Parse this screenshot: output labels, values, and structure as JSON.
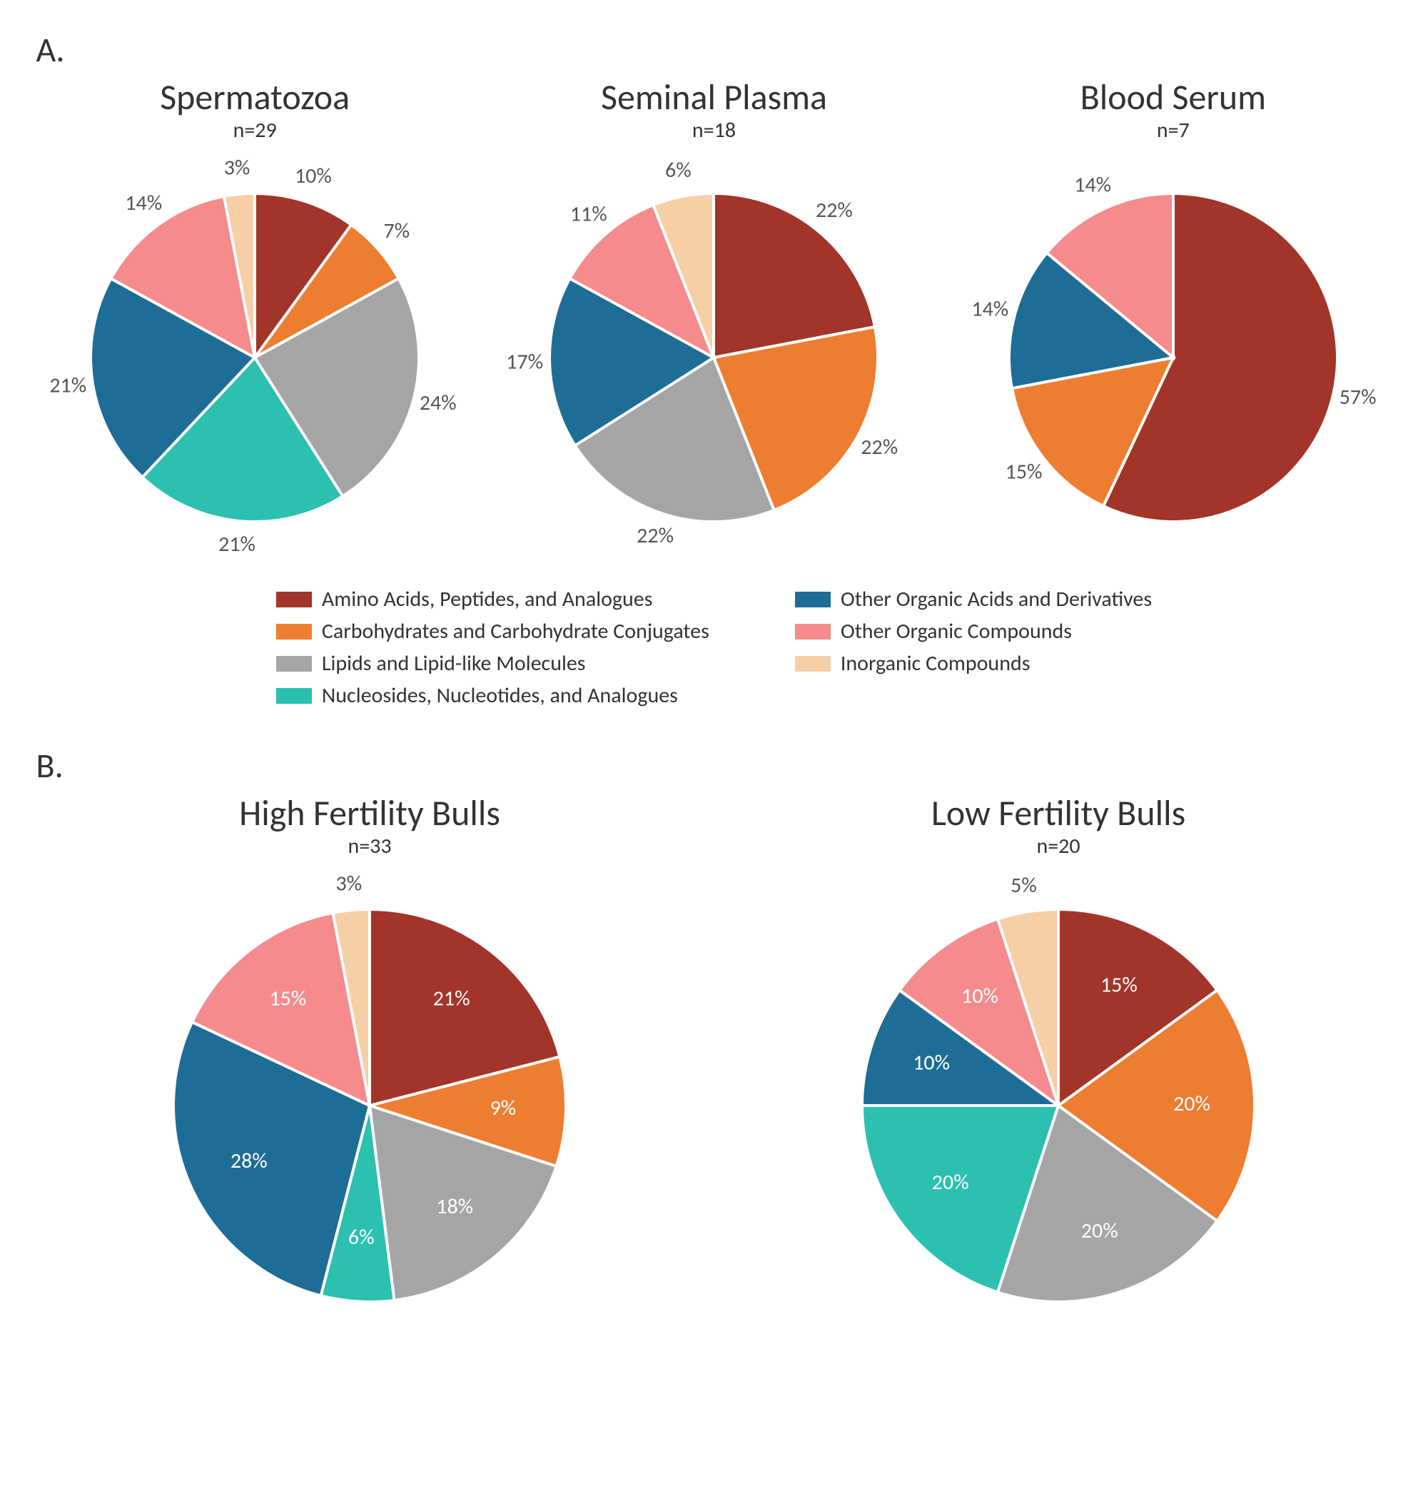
{
  "panels": {
    "A": {
      "label": "A."
    },
    "B": {
      "label": "B."
    }
  },
  "colors": {
    "amino": "#a23429",
    "carb": "#ed7d31",
    "lipids": "#a5a5a5",
    "nucleo": "#2bc0b0",
    "otherAD": "#1e6d96",
    "otherOC": "#f58b8c",
    "inorg": "#f6cfa6",
    "stroke": "#ffffff",
    "bg": "#ffffff",
    "text": "#333333",
    "label_out": "#555555",
    "label_in": "#ffffff"
  },
  "legend": [
    {
      "key": "amino",
      "label": "Amino Acids, Peptides, and Analogues"
    },
    {
      "key": "carb",
      "label": "Carbohydrates and Carbohydrate Conjugates"
    },
    {
      "key": "lipids",
      "label": "Lipids and Lipid-like Molecules"
    },
    {
      "key": "nucleo",
      "label": "Nucleosides, Nucleotides, and Analogues"
    },
    {
      "key": "otherAD",
      "label": "Other Organic Acids and Derivatives"
    },
    {
      "key": "otherOC",
      "label": "Other Organic Compounds"
    },
    {
      "key": "inorg",
      "label": "Inorganic Compounds"
    }
  ],
  "charts": {
    "spermatozoa": {
      "title": "Spermatozoa",
      "n_label": "n=29",
      "type": "pie",
      "radius": 230,
      "stroke_width": 4,
      "slices": [
        {
          "key": "amino",
          "value": 10,
          "label": "10%",
          "label_inside": false
        },
        {
          "key": "carb",
          "value": 7,
          "label": "7%",
          "label_inside": false
        },
        {
          "key": "lipids",
          "value": 24,
          "label": "24%",
          "label_inside": false
        },
        {
          "key": "nucleo",
          "value": 21,
          "label": "21%",
          "label_inside": false
        },
        {
          "key": "otherAD",
          "value": 21,
          "label": "21%",
          "label_inside": false
        },
        {
          "key": "otherOC",
          "value": 14,
          "label": "14%",
          "label_inside": false
        },
        {
          "key": "inorg",
          "value": 3,
          "label": "3%",
          "label_inside": false
        }
      ]
    },
    "seminal": {
      "title": "Seminal Plasma",
      "n_label": "n=18",
      "type": "pie",
      "radius": 230,
      "stroke_width": 4,
      "slices": [
        {
          "key": "amino",
          "value": 22,
          "label": "22%",
          "label_inside": false
        },
        {
          "key": "carb",
          "value": 22,
          "label": "22%",
          "label_inside": false
        },
        {
          "key": "lipids",
          "value": 22,
          "label": "22%",
          "label_inside": false
        },
        {
          "key": "otherAD",
          "value": 17,
          "label": "17%",
          "label_inside": false
        },
        {
          "key": "otherOC",
          "value": 11,
          "label": "11%",
          "label_inside": false
        },
        {
          "key": "inorg",
          "value": 6,
          "label": "6%",
          "label_inside": false
        }
      ]
    },
    "blood": {
      "title": "Blood Serum",
      "n_label": "n=7",
      "type": "pie",
      "radius": 230,
      "stroke_width": 4,
      "slices": [
        {
          "key": "amino",
          "value": 57,
          "label": "57%",
          "label_inside": false
        },
        {
          "key": "carb",
          "value": 15,
          "label": "15%",
          "label_inside": false
        },
        {
          "key": "otherAD",
          "value": 14,
          "label": "14%",
          "label_inside": false
        },
        {
          "key": "otherOC",
          "value": 14,
          "label": "14%",
          "label_inside": false
        }
      ]
    },
    "high": {
      "title": "High Fertility Bulls",
      "n_label": "n=33",
      "type": "pie",
      "radius": 275,
      "stroke_width": 4,
      "slices": [
        {
          "key": "amino",
          "value": 21,
          "label": "21%",
          "label_inside": true
        },
        {
          "key": "carb",
          "value": 9,
          "label": "9%",
          "label_inside": true
        },
        {
          "key": "lipids",
          "value": 18,
          "label": "18%",
          "label_inside": true
        },
        {
          "key": "nucleo",
          "value": 6,
          "label": "6%",
          "label_inside": true
        },
        {
          "key": "otherAD",
          "value": 28,
          "label": "28%",
          "label_inside": true
        },
        {
          "key": "otherOC",
          "value": 15,
          "label": "15%",
          "label_inside": true
        },
        {
          "key": "inorg",
          "value": 3,
          "label": "3%",
          "label_inside": false
        }
      ]
    },
    "low": {
      "title": "Low Fertility Bulls",
      "n_label": "n=20",
      "type": "pie",
      "radius": 275,
      "stroke_width": 4,
      "slices": [
        {
          "key": "amino",
          "value": 15,
          "label": "15%",
          "label_inside": true
        },
        {
          "key": "carb",
          "value": 20,
          "label": "20%",
          "label_inside": true
        },
        {
          "key": "lipids",
          "value": 20,
          "label": "20%",
          "label_inside": true
        },
        {
          "key": "nucleo",
          "value": 20,
          "label": "20%",
          "label_inside": true
        },
        {
          "key": "otherAD",
          "value": 10,
          "label": "10%",
          "label_inside": true
        },
        {
          "key": "otherOC",
          "value": 10,
          "label": "10%",
          "label_inside": true
        },
        {
          "key": "inorg",
          "value": 5,
          "label": "5%",
          "label_inside": false
        }
      ]
    }
  },
  "layout": {
    "panelA_order": [
      "spermatozoa",
      "seminal",
      "blood"
    ],
    "panelB_order": [
      "high",
      "low"
    ],
    "legend_cols": [
      [
        "amino",
        "carb",
        "lipids",
        "nucleo"
      ],
      [
        "otherAD",
        "otherOC",
        "inorg"
      ]
    ],
    "label_fontsize": 30,
    "title_fontsize": 50,
    "sub_fontsize": 30
  }
}
